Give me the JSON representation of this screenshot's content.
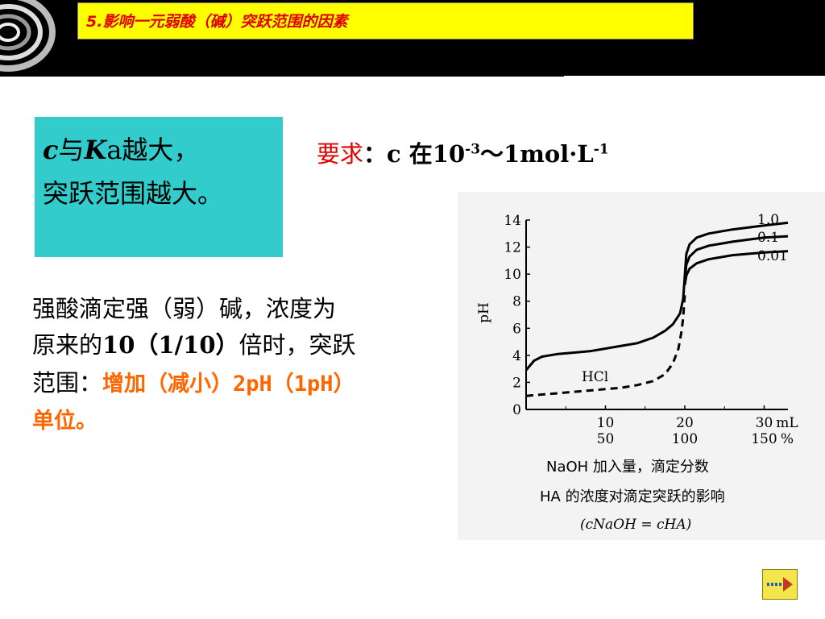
{
  "header": {
    "title": "5.影响一元弱酸（碱）突跃范围的因素",
    "bg_color": "#000000",
    "title_bg_color": "#ffff00",
    "title_color": "#e00000"
  },
  "cyan_box": {
    "line1_c": "c",
    "line1_mid": "与",
    "line1_K": "K",
    "line1_rest": "a越大，",
    "line2": "突跃范围越大。",
    "color": "#33cccc"
  },
  "requirement": {
    "label": "要求",
    "colon": "：",
    "text_pre": "c  在10",
    "sup1": "-3",
    "text_mid": "～1mol·L",
    "sup2": "-1"
  },
  "paragraph": {
    "line1": "强酸滴定强（弱）碱，浓度为",
    "line2_a": "原来的",
    "line2_b": "10（1/10）",
    "line2_c": "倍时，突跃",
    "line3_a": "范围：",
    "line3_highlight": "增加（减小）2pH（1pH）",
    "line4_highlight": "单位。",
    "highlight_color": "#ff6600"
  },
  "chart_data": {
    "type": "line",
    "ylabel": "pH",
    "ylim": [
      0,
      14
    ],
    "xlim": [
      0,
      33
    ],
    "y_ticks": [
      0,
      2,
      4,
      6,
      8,
      10,
      12,
      14
    ],
    "x_ticks_ml": [
      "10",
      "20",
      "30"
    ],
    "x_ticks_pct": [
      "50",
      "100",
      "150"
    ],
    "x_unit_ml": "mL",
    "x_unit_pct": "%",
    "x_caption": "NaOH 加入量，滴定分数",
    "caption_title": "HA 的浓度对滴定突跃的影响",
    "caption_formula": "(cNaOH = cHA)",
    "series": [
      {
        "name": "1.0",
        "style": "solid",
        "x": [
          0,
          1,
          2,
          4,
          6,
          8,
          10,
          12,
          14,
          16,
          17.5,
          18.5,
          19.4,
          19.8,
          20.0,
          20.2,
          20.6,
          21.5,
          23,
          26,
          30,
          33
        ],
        "y": [
          2.9,
          3.6,
          3.9,
          4.1,
          4.2,
          4.3,
          4.5,
          4.7,
          4.9,
          5.3,
          5.8,
          6.3,
          7.1,
          8.2,
          9.9,
          11.5,
          12.2,
          12.7,
          13.0,
          13.3,
          13.6,
          13.8
        ]
      },
      {
        "name": "0.1",
        "style": "solid",
        "x": [
          20.0,
          20.2,
          20.6,
          21.5,
          23,
          26,
          30,
          33
        ],
        "y": [
          9.6,
          10.7,
          11.3,
          11.8,
          12.1,
          12.4,
          12.7,
          12.8
        ]
      },
      {
        "name": "0.01",
        "style": "solid",
        "x": [
          20.0,
          20.2,
          20.6,
          21.5,
          23,
          26,
          30,
          33
        ],
        "y": [
          9.2,
          9.9,
          10.4,
          10.8,
          11.1,
          11.4,
          11.6,
          11.7
        ]
      },
      {
        "name": "HCl",
        "style": "dashed",
        "x": [
          0,
          2,
          4,
          6,
          8,
          10,
          12,
          14,
          16,
          17.5,
          18.5,
          19.2,
          19.6,
          19.8,
          20.0
        ],
        "y": [
          1.0,
          1.1,
          1.2,
          1.3,
          1.4,
          1.5,
          1.6,
          1.8,
          2.1,
          2.6,
          3.4,
          4.5,
          5.8,
          6.8,
          8.5
        ]
      }
    ]
  }
}
